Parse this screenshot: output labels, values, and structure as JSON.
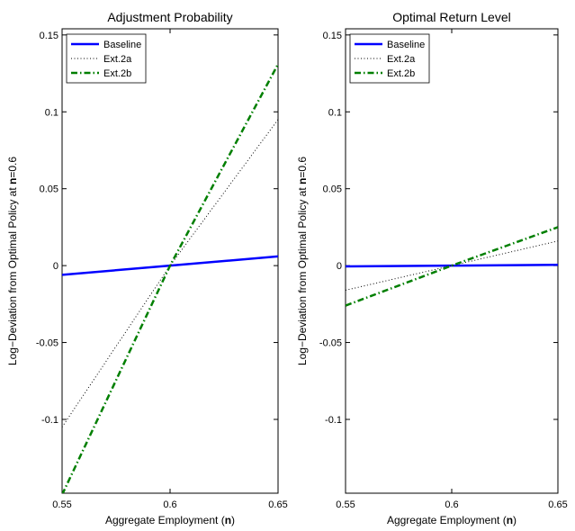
{
  "chart_data": [
    {
      "type": "line",
      "title": "Adjustment Probability",
      "xlabel": [
        "Aggregate Employment (",
        "n",
        ")"
      ],
      "ylabel": [
        "Log−Deviation from Optimal Policy at ",
        "n",
        "=0.6"
      ],
      "x": [
        0.55,
        0.6,
        0.65
      ],
      "series": [
        {
          "name": "Baseline",
          "color": "#0000ff",
          "style": "solid",
          "values": [
            -0.006,
            0,
            0.006
          ]
        },
        {
          "name": "Ext.2a",
          "color": "#000000",
          "style": "dotted",
          "values": [
            -0.105,
            0,
            0.095
          ]
        },
        {
          "name": "Ext.2b",
          "color": "#007f00",
          "style": "dashdot",
          "values": [
            -0.149,
            0,
            0.131
          ]
        }
      ],
      "xlim": [
        0.55,
        0.65
      ],
      "xticks": [
        0.55,
        0.6,
        0.65
      ],
      "ylim": [
        -0.148,
        0.154
      ],
      "yticks": [
        -0.1,
        -0.05,
        0,
        0.05,
        0.1,
        0.15
      ],
      "legend": "upper-left"
    },
    {
      "type": "line",
      "title": "Optimal Return Level",
      "xlabel": [
        "Aggregate Employment (",
        "n",
        ")"
      ],
      "ylabel": [
        "Log−Deviation from Optimal Policy at ",
        "n",
        "=0.6"
      ],
      "x": [
        0.55,
        0.6,
        0.65
      ],
      "series": [
        {
          "name": "Baseline",
          "color": "#0000ff",
          "style": "solid",
          "values": [
            -0.0005,
            0,
            0.0005
          ]
        },
        {
          "name": "Ext.2a",
          "color": "#000000",
          "style": "dotted",
          "values": [
            -0.016,
            0,
            0.016
          ]
        },
        {
          "name": "Ext.2b",
          "color": "#007f00",
          "style": "dashdot",
          "values": [
            -0.026,
            0,
            0.025
          ]
        }
      ],
      "xlim": [
        0.55,
        0.65
      ],
      "xticks": [
        0.55,
        0.6,
        0.65
      ],
      "ylim": [
        -0.148,
        0.154
      ],
      "yticks": [
        -0.1,
        -0.05,
        0,
        0.05,
        0.1,
        0.15
      ],
      "legend": "upper-left"
    }
  ]
}
